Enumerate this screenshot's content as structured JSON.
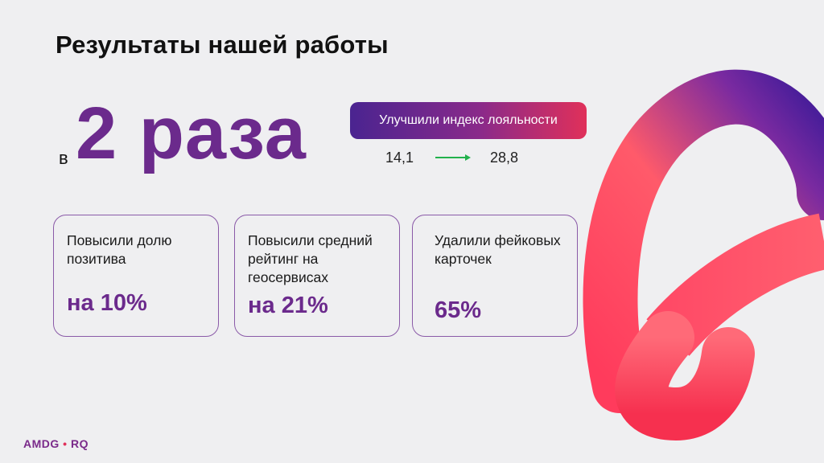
{
  "slide": {
    "title": "Результаты нашей работы",
    "headline_prefix": "в",
    "headline_value": "2 раза",
    "loyalty": {
      "label": "Улучшили индекс лояльности",
      "from": "14,1",
      "to": "28,8"
    },
    "cards": [
      {
        "text": "Повысили долю позитива",
        "value": "на 10%"
      },
      {
        "text": "Повысили средний рейтинг на геосервисах",
        "value": "на 21%"
      },
      {
        "text": "Удалили фейковых карточек",
        "value": "65%"
      }
    ],
    "logo": {
      "part1": "AMDG",
      "separator": "•",
      "part2": "RQ"
    }
  },
  "colors": {
    "accent_purple": "#6b2a8c",
    "gradient_start": "#4a2490",
    "gradient_end": "#e0305a",
    "arrow_green": "#22b14c",
    "background": "#efeff1"
  },
  "icons": {
    "arrow": "arrow-right-icon",
    "decoration": "gradient-loop-decoration"
  }
}
